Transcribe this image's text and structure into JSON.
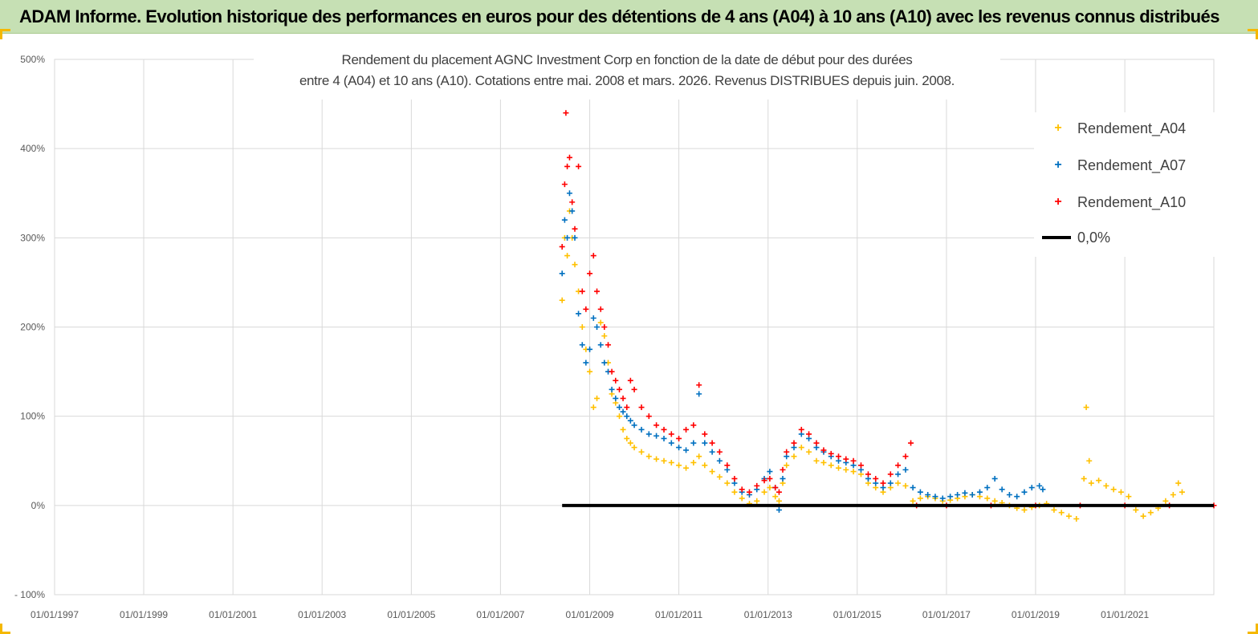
{
  "banner": {
    "title": "ADAM Informe. Evolution historique des performances en euros pour des détentions de 4 ans (A04) à 10 ans (A10) avec les revenus connus distribués",
    "background": "#c6e0b4",
    "corner_accent": "#f5b800"
  },
  "chart_data": {
    "type": "scatter",
    "title_line1": "Rendement du placement AGNC Investment Corp en fonction de la date de début pour des durées",
    "title_line2": "entre 4 (A04) et 10 ans (A10). Cotations entre mai. 2008 et mars. 2026. Revenus DISTRIBUES depuis juin. 2008.",
    "xlim": [
      "1997-01-01",
      "2022-12-31"
    ],
    "ylim": [
      -100,
      500
    ],
    "x_ticks": [
      "01/01/1997",
      "01/01/1999",
      "01/01/2001",
      "01/01/2003",
      "01/01/2005",
      "01/01/2007",
      "01/01/2009",
      "01/01/2011",
      "01/01/2013",
      "01/01/2015",
      "01/01/2017",
      "01/01/2019",
      "01/01/2021"
    ],
    "y_ticks": [
      {
        "value": 500,
        "label": "500%"
      },
      {
        "value": 400,
        "label": "400%"
      },
      {
        "value": 300,
        "label": "300%"
      },
      {
        "value": 200,
        "label": "200%"
      },
      {
        "value": 100,
        "label": "100%"
      },
      {
        "value": 0,
        "label": "0%"
      },
      {
        "value": -100,
        "label": "- 100%"
      }
    ],
    "grid": true,
    "legend_position": "top-right",
    "series": [
      {
        "name": "Rendement_A04",
        "color": "#ffc000",
        "marker": "+",
        "points": [
          [
            "2008-05-20",
            230
          ],
          [
            "2008-06-10",
            300
          ],
          [
            "2008-07-01",
            280
          ],
          [
            "2008-07-20",
            330
          ],
          [
            "2008-08-10",
            300
          ],
          [
            "2008-09-01",
            270
          ],
          [
            "2008-10-01",
            240
          ],
          [
            "2008-11-01",
            200
          ],
          [
            "2008-12-01",
            175
          ],
          [
            "2009-01-01",
            150
          ],
          [
            "2009-02-01",
            110
          ],
          [
            "2009-03-01",
            120
          ],
          [
            "2009-04-01",
            205
          ],
          [
            "2009-05-01",
            190
          ],
          [
            "2009-06-01",
            160
          ],
          [
            "2009-07-01",
            125
          ],
          [
            "2009-08-01",
            115
          ],
          [
            "2009-09-01",
            100
          ],
          [
            "2009-10-01",
            85
          ],
          [
            "2009-11-01",
            75
          ],
          [
            "2009-12-01",
            70
          ],
          [
            "2010-01-01",
            65
          ],
          [
            "2010-03-01",
            60
          ],
          [
            "2010-05-01",
            55
          ],
          [
            "2010-07-01",
            52
          ],
          [
            "2010-09-01",
            50
          ],
          [
            "2010-11-01",
            48
          ],
          [
            "2011-01-01",
            45
          ],
          [
            "2011-03-01",
            42
          ],
          [
            "2011-05-01",
            48
          ],
          [
            "2011-06-15",
            55
          ],
          [
            "2011-08-01",
            45
          ],
          [
            "2011-10-01",
            38
          ],
          [
            "2011-12-01",
            32
          ],
          [
            "2012-02-01",
            25
          ],
          [
            "2012-04-01",
            15
          ],
          [
            "2012-06-01",
            8
          ],
          [
            "2012-08-01",
            2
          ],
          [
            "2012-10-01",
            5
          ],
          [
            "2012-12-01",
            15
          ],
          [
            "2013-01-15",
            20
          ],
          [
            "2013-03-01",
            10
          ],
          [
            "2013-04-01",
            5
          ],
          [
            "2013-05-01",
            25
          ],
          [
            "2013-06-01",
            45
          ],
          [
            "2013-08-01",
            55
          ],
          [
            "2013-10-01",
            65
          ],
          [
            "2013-12-01",
            60
          ],
          [
            "2014-02-01",
            50
          ],
          [
            "2014-04-01",
            48
          ],
          [
            "2014-06-01",
            45
          ],
          [
            "2014-08-01",
            42
          ],
          [
            "2014-10-01",
            40
          ],
          [
            "2014-12-01",
            38
          ],
          [
            "2015-02-01",
            35
          ],
          [
            "2015-04-01",
            25
          ],
          [
            "2015-06-01",
            20
          ],
          [
            "2015-08-01",
            15
          ],
          [
            "2015-10-01",
            20
          ],
          [
            "2015-12-01",
            25
          ],
          [
            "2016-02-01",
            22
          ],
          [
            "2016-04-01",
            5
          ],
          [
            "2016-06-01",
            8
          ],
          [
            "2016-08-01",
            10
          ],
          [
            "2016-10-01",
            8
          ],
          [
            "2016-12-01",
            5
          ],
          [
            "2017-02-01",
            6
          ],
          [
            "2017-04-01",
            8
          ],
          [
            "2017-06-01",
            10
          ],
          [
            "2017-08-01",
            12
          ],
          [
            "2017-10-01",
            10
          ],
          [
            "2017-12-01",
            8
          ],
          [
            "2018-02-01",
            5
          ],
          [
            "2018-04-01",
            3
          ],
          [
            "2018-06-01",
            0
          ],
          [
            "2018-08-01",
            -3
          ],
          [
            "2018-10-01",
            -5
          ],
          [
            "2018-12-01",
            -2
          ],
          [
            "2019-02-01",
            0
          ],
          [
            "2019-04-01",
            2
          ],
          [
            "2019-06-01",
            -5
          ],
          [
            "2019-08-01",
            -8
          ],
          [
            "2019-10-01",
            -12
          ],
          [
            "2019-12-01",
            -15
          ],
          [
            "2020-02-01",
            30
          ],
          [
            "2020-02-20",
            110
          ],
          [
            "2020-03-15",
            50
          ],
          [
            "2020-04-01",
            25
          ],
          [
            "2020-06-01",
            28
          ],
          [
            "2020-08-01",
            22
          ],
          [
            "2020-10-01",
            18
          ],
          [
            "2020-12-01",
            15
          ],
          [
            "2021-02-01",
            10
          ],
          [
            "2021-04-01",
            -5
          ],
          [
            "2021-06-01",
            -12
          ],
          [
            "2021-08-01",
            -8
          ],
          [
            "2021-10-01",
            -3
          ],
          [
            "2021-12-01",
            5
          ],
          [
            "2022-02-01",
            12
          ],
          [
            "2022-03-15",
            25
          ],
          [
            "2022-04-15",
            15
          ]
        ]
      },
      {
        "name": "Rendement_A07",
        "color": "#0070c0",
        "marker": "+",
        "points": [
          [
            "2008-05-20",
            260
          ],
          [
            "2008-06-10",
            320
          ],
          [
            "2008-07-01",
            300
          ],
          [
            "2008-07-20",
            350
          ],
          [
            "2008-08-10",
            330
          ],
          [
            "2008-09-01",
            300
          ],
          [
            "2008-10-01",
            215
          ],
          [
            "2008-11-01",
            180
          ],
          [
            "2008-12-01",
            160
          ],
          [
            "2009-01-01",
            175
          ],
          [
            "2009-02-01",
            210
          ],
          [
            "2009-03-01",
            200
          ],
          [
            "2009-04-01",
            180
          ],
          [
            "2009-05-01",
            160
          ],
          [
            "2009-06-01",
            150
          ],
          [
            "2009-07-01",
            130
          ],
          [
            "2009-08-01",
            120
          ],
          [
            "2009-09-01",
            110
          ],
          [
            "2009-10-01",
            105
          ],
          [
            "2009-11-01",
            100
          ],
          [
            "2009-12-01",
            95
          ],
          [
            "2010-01-01",
            90
          ],
          [
            "2010-03-01",
            85
          ],
          [
            "2010-05-01",
            80
          ],
          [
            "2010-07-01",
            78
          ],
          [
            "2010-09-01",
            75
          ],
          [
            "2010-11-01",
            70
          ],
          [
            "2011-01-01",
            65
          ],
          [
            "2011-03-01",
            62
          ],
          [
            "2011-05-01",
            70
          ],
          [
            "2011-06-15",
            125
          ],
          [
            "2011-08-01",
            70
          ],
          [
            "2011-10-01",
            60
          ],
          [
            "2011-12-01",
            50
          ],
          [
            "2012-02-01",
            40
          ],
          [
            "2012-04-01",
            25
          ],
          [
            "2012-06-01",
            15
          ],
          [
            "2012-08-01",
            12
          ],
          [
            "2012-10-01",
            18
          ],
          [
            "2012-12-01",
            30
          ],
          [
            "2013-01-15",
            38
          ],
          [
            "2013-03-01",
            20
          ],
          [
            "2013-04-01",
            -5
          ],
          [
            "2013-05-01",
            30
          ],
          [
            "2013-06-01",
            55
          ],
          [
            "2013-08-01",
            65
          ],
          [
            "2013-10-01",
            80
          ],
          [
            "2013-12-01",
            75
          ],
          [
            "2014-02-01",
            65
          ],
          [
            "2014-04-01",
            60
          ],
          [
            "2014-06-01",
            55
          ],
          [
            "2014-08-01",
            50
          ],
          [
            "2014-10-01",
            48
          ],
          [
            "2014-12-01",
            45
          ],
          [
            "2015-02-01",
            40
          ],
          [
            "2015-04-01",
            30
          ],
          [
            "2015-06-01",
            25
          ],
          [
            "2015-08-01",
            20
          ],
          [
            "2015-10-01",
            25
          ],
          [
            "2015-12-01",
            35
          ],
          [
            "2016-02-01",
            40
          ],
          [
            "2016-04-01",
            20
          ],
          [
            "2016-06-01",
            15
          ],
          [
            "2016-08-01",
            12
          ],
          [
            "2016-10-01",
            10
          ],
          [
            "2016-12-01",
            8
          ],
          [
            "2017-02-01",
            10
          ],
          [
            "2017-04-01",
            12
          ],
          [
            "2017-06-01",
            14
          ],
          [
            "2017-08-01",
            12
          ],
          [
            "2017-10-01",
            15
          ],
          [
            "2017-12-01",
            20
          ],
          [
            "2018-02-01",
            30
          ],
          [
            "2018-04-01",
            18
          ],
          [
            "2018-06-01",
            12
          ],
          [
            "2018-08-01",
            10
          ],
          [
            "2018-10-01",
            15
          ],
          [
            "2018-12-01",
            20
          ],
          [
            "2019-02-01",
            22
          ],
          [
            "2019-03-01",
            18
          ]
        ]
      },
      {
        "name": "Rendement_A10",
        "color": "#ff0000",
        "marker": "+",
        "points": [
          [
            "2008-05-20",
            290
          ],
          [
            "2008-06-10",
            360
          ],
          [
            "2008-06-20",
            440
          ],
          [
            "2008-07-01",
            380
          ],
          [
            "2008-07-20",
            390
          ],
          [
            "2008-08-10",
            340
          ],
          [
            "2008-09-01",
            310
          ],
          [
            "2008-10-01",
            380
          ],
          [
            "2008-11-01",
            240
          ],
          [
            "2008-12-01",
            220
          ],
          [
            "2009-01-01",
            260
          ],
          [
            "2009-02-01",
            280
          ],
          [
            "2009-03-01",
            240
          ],
          [
            "2009-04-01",
            220
          ],
          [
            "2009-05-01",
            200
          ],
          [
            "2009-06-01",
            180
          ],
          [
            "2009-07-01",
            150
          ],
          [
            "2009-08-01",
            140
          ],
          [
            "2009-09-01",
            130
          ],
          [
            "2009-10-01",
            120
          ],
          [
            "2009-11-01",
            110
          ],
          [
            "2009-12-01",
            140
          ],
          [
            "2010-01-01",
            130
          ],
          [
            "2010-03-01",
            110
          ],
          [
            "2010-05-01",
            100
          ],
          [
            "2010-07-01",
            90
          ],
          [
            "2010-09-01",
            85
          ],
          [
            "2010-11-01",
            80
          ],
          [
            "2011-01-01",
            75
          ],
          [
            "2011-03-01",
            85
          ],
          [
            "2011-05-01",
            90
          ],
          [
            "2011-06-15",
            135
          ],
          [
            "2011-08-01",
            80
          ],
          [
            "2011-10-01",
            70
          ],
          [
            "2011-12-01",
            60
          ],
          [
            "2012-02-01",
            45
          ],
          [
            "2012-04-01",
            30
          ],
          [
            "2012-06-01",
            18
          ],
          [
            "2012-08-01",
            15
          ],
          [
            "2012-10-01",
            22
          ],
          [
            "2012-12-01",
            28
          ],
          [
            "2013-01-15",
            30
          ],
          [
            "2013-03-01",
            20
          ],
          [
            "2013-04-01",
            15
          ],
          [
            "2013-05-01",
            40
          ],
          [
            "2013-06-01",
            60
          ],
          [
            "2013-08-01",
            70
          ],
          [
            "2013-10-01",
            85
          ],
          [
            "2013-12-01",
            80
          ],
          [
            "2014-02-01",
            70
          ],
          [
            "2014-04-01",
            62
          ],
          [
            "2014-06-01",
            58
          ],
          [
            "2014-08-01",
            55
          ],
          [
            "2014-10-01",
            52
          ],
          [
            "2014-12-01",
            50
          ],
          [
            "2015-02-01",
            45
          ],
          [
            "2015-04-01",
            35
          ],
          [
            "2015-06-01",
            30
          ],
          [
            "2015-08-01",
            25
          ],
          [
            "2015-10-01",
            35
          ],
          [
            "2015-12-01",
            45
          ],
          [
            "2016-02-01",
            55
          ],
          [
            "2016-03-15",
            70
          ],
          [
            "2016-05-01",
            0
          ],
          [
            "2017-01-01",
            0
          ],
          [
            "2018-01-01",
            0
          ],
          [
            "2019-01-01",
            0
          ],
          [
            "2020-01-01",
            0
          ],
          [
            "2021-01-01",
            0
          ],
          [
            "2022-01-01",
            0
          ],
          [
            "2022-12-31",
            0
          ]
        ]
      },
      {
        "name": "0,0%",
        "color": "#000000",
        "marker": "line",
        "points": [
          [
            "2008-05-20",
            0
          ],
          [
            "2022-12-31",
            0
          ]
        ]
      }
    ]
  }
}
